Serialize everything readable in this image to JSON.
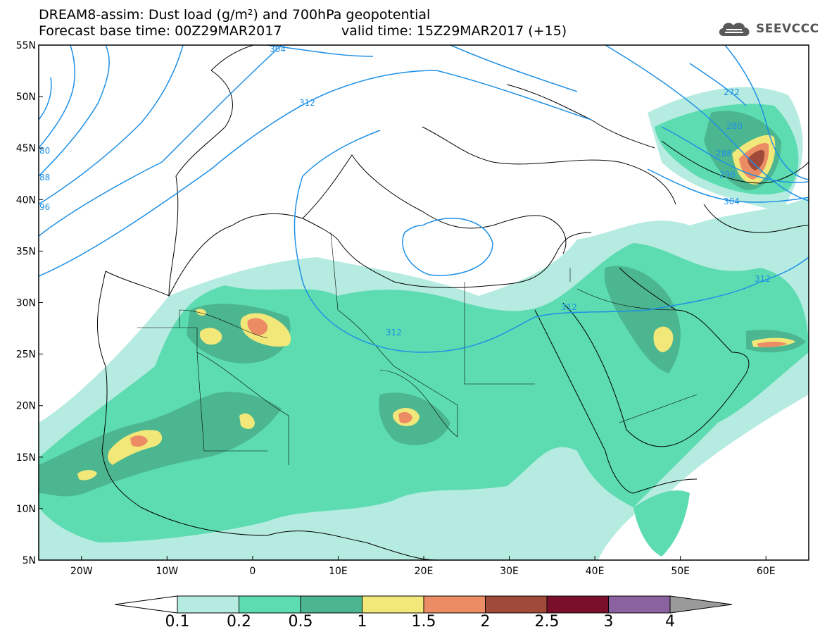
{
  "title_line1": "DREAM8-assim: Dust load (g/m²) and 700hPa geopotential",
  "title_line2": "Forecast base time: 00Z29MAR2017",
  "valid_time": "valid time: 15Z29MAR2017 (+15)",
  "logo_text": "SEEVCCC",
  "logo_icon": "cloud-icon",
  "map": {
    "lon_range": [
      -25,
      65
    ],
    "lat_range": [
      5,
      55
    ],
    "lon_ticks": [
      "20W",
      "10W",
      "0",
      "10E",
      "20E",
      "30E",
      "40E",
      "50E",
      "60E"
    ],
    "lat_ticks": [
      "5N",
      "10N",
      "15N",
      "20N",
      "25N",
      "30N",
      "35N",
      "40N",
      "45N",
      "50N",
      "55N"
    ],
    "contour_color": "#1e90e6",
    "contour_labels": [
      "304",
      "312",
      "80",
      "88",
      "96",
      "304",
      "312",
      "312",
      "312",
      "272",
      "280",
      "288",
      "296",
      "304",
      "312"
    ]
  },
  "colorbar": {
    "labels": [
      "0.1",
      "0.2",
      "0.5",
      "1",
      "1.5",
      "2",
      "2.5",
      "3",
      "4"
    ],
    "colors": [
      "#b5ebe0",
      "#5cdcb0",
      "#4cb690",
      "#f2e87a",
      "#ec8c64",
      "#a04a3a",
      "#7a0f2c",
      "#8b62a0",
      "#9a9a9a"
    ]
  }
}
